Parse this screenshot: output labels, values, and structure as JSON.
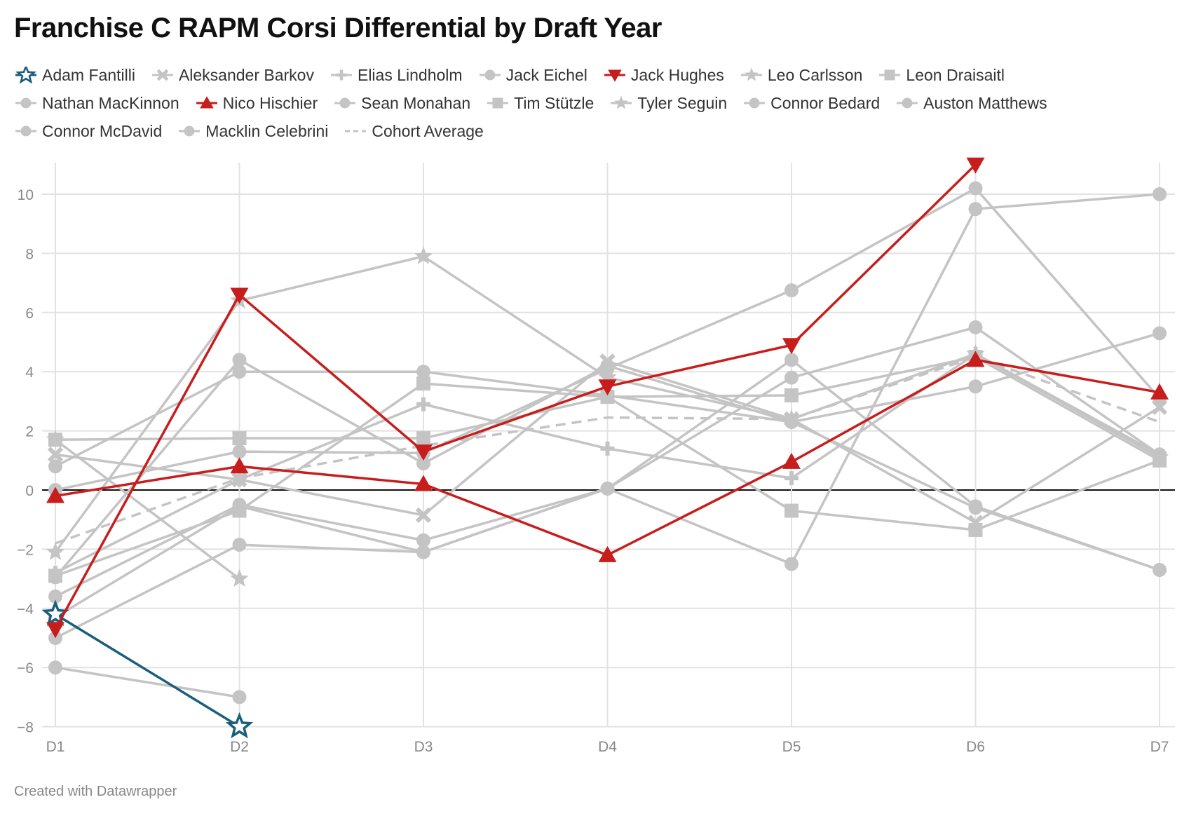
{
  "title": "Franchise C RAPM Corsi Differential by Draft Year",
  "footer": "Created with Datawrapper",
  "colors": {
    "highlight_blue": "#1a5e7a",
    "highlight_red": "#c71e1d",
    "grey": "#c4c4c4",
    "average": "#c4c4c4"
  },
  "chart_data": {
    "type": "line",
    "title": "Franchise C RAPM Corsi Differential by Draft Year",
    "xlabel": "",
    "ylabel": "",
    "categories": [
      "D1",
      "D2",
      "D3",
      "D4",
      "D5",
      "D6",
      "D7"
    ],
    "ylim": [
      -8,
      11
    ],
    "yticks": [
      -8,
      -6,
      -4,
      -2,
      0,
      2,
      4,
      6,
      8,
      10
    ],
    "grid": true,
    "legend": "top",
    "series": [
      {
        "name": "Adam Fantilli",
        "marker": "star-outline",
        "color": "#1a5e7a",
        "highlight": true,
        "values": [
          -4.2,
          -8.0,
          null,
          null,
          null,
          null,
          null
        ]
      },
      {
        "name": "Aleksander Barkov",
        "marker": "cross",
        "color": "#c4c4c4",
        "values": [
          1.2,
          0.35,
          -0.85,
          4.35,
          2.4,
          -1.1,
          2.8
        ]
      },
      {
        "name": "Elias Lindholm",
        "marker": "plus",
        "color": "#c4c4c4",
        "values": [
          -2.8,
          0.35,
          2.9,
          1.4,
          0.4,
          4.6,
          1.2
        ]
      },
      {
        "name": "Jack Eichel",
        "marker": "circle",
        "color": "#c4c4c4",
        "values": [
          0.8,
          4.0,
          4.0,
          3.2,
          2.3,
          -0.6,
          -2.7
        ]
      },
      {
        "name": "Jack Hughes",
        "marker": "triangle-down",
        "color": "#c71e1d",
        "highlight": true,
        "values": [
          -4.7,
          6.6,
          1.3,
          3.5,
          4.9,
          11.0,
          null
        ]
      },
      {
        "name": "Leo Carlsson",
        "marker": "star",
        "color": "#c4c4c4",
        "values": [
          -2.1,
          6.4,
          7.9,
          3.8,
          2.4,
          4.6,
          1.1
        ]
      },
      {
        "name": "Leon Draisaitl",
        "marker": "square",
        "color": "#c4c4c4",
        "values": [
          1.7,
          1.75,
          1.75,
          3.15,
          -0.7,
          -1.35,
          1.0
        ]
      },
      {
        "name": "Nathan MacKinnon",
        "marker": "circle",
        "color": "#c4c4c4",
        "values": [
          0.0,
          1.3,
          1.25,
          4.1,
          6.75,
          10.2,
          3.1
        ]
      },
      {
        "name": "Nico Hischier",
        "marker": "triangle-up",
        "color": "#c71e1d",
        "highlight": true,
        "values": [
          -0.2,
          0.8,
          0.2,
          -2.2,
          0.95,
          4.4,
          3.3
        ]
      },
      {
        "name": "Sean Monahan",
        "marker": "circle",
        "color": "#c4c4c4",
        "values": [
          -3.6,
          -0.5,
          -1.7,
          0.05,
          4.4,
          -0.55,
          -2.7
        ]
      },
      {
        "name": "Tim Stützle",
        "marker": "square",
        "color": "#c4c4c4",
        "values": [
          -2.9,
          -0.7,
          3.6,
          3.15,
          3.2,
          4.5,
          1.0
        ]
      },
      {
        "name": "Tyler Seguin",
        "marker": "star",
        "color": "#c4c4c4",
        "values": [
          1.7,
          -3.0,
          null,
          null,
          null,
          null,
          null
        ]
      },
      {
        "name": "Connor Bedard",
        "marker": "circle",
        "color": "#c4c4c4",
        "values": [
          -5.0,
          -1.85,
          -2.1,
          0.05,
          3.8,
          5.5,
          1.2
        ]
      },
      {
        "name": "Auston Matthews",
        "marker": "circle",
        "color": "#c4c4c4",
        "values": [
          -2.95,
          4.4,
          0.9,
          4.2,
          2.3,
          3.5,
          5.3
        ]
      },
      {
        "name": "Connor McDavid",
        "marker": "circle",
        "color": "#c4c4c4",
        "values": [
          -4.3,
          -0.55,
          -2.1,
          0.05,
          -2.5,
          9.5,
          10.0
        ]
      },
      {
        "name": "Macklin Celebrini",
        "marker": "circle",
        "color": "#c4c4c4",
        "values": [
          -6.0,
          -7.0,
          null,
          null,
          null,
          null,
          null
        ]
      },
      {
        "name": "Cohort Average",
        "marker": "dashed",
        "color": "#c4c4c4",
        "values": [
          -1.8,
          0.4,
          1.5,
          2.45,
          2.4,
          4.5,
          2.3
        ]
      }
    ]
  }
}
